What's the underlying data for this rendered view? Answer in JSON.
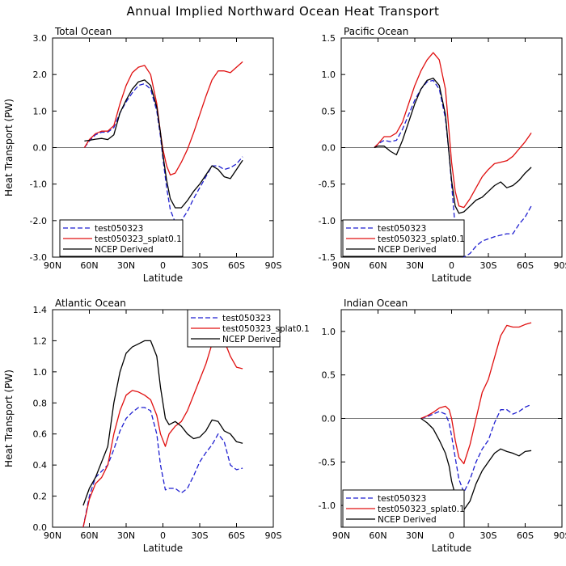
{
  "figure_title": "Annual Implied Northward Ocean Heat Transport",
  "legend_labels": [
    "test050323",
    "test050323_splat0.1",
    "NCEP Derived"
  ],
  "colors": {
    "test050323": "#1f1fd0",
    "test050323_splat0.1": "#e01010",
    "NCEP Derived": "#000000"
  },
  "chart_data": [
    {
      "type": "line",
      "title": "Total Ocean",
      "xlabel": "Latitude",
      "ylabel": "Heat Transport (PW)",
      "x_tick_labels": [
        "90N",
        "60N",
        "30N",
        "0",
        "30S",
        "60S",
        "90S"
      ],
      "xlim": [
        90,
        -90
      ],
      "ylim": [
        -3.0,
        3.0
      ],
      "y_ticks": [
        -3.0,
        -2.0,
        -1.0,
        0.0,
        1.0,
        2.0,
        3.0
      ],
      "y_tick_labels": [
        "-3.0",
        "-2.0",
        "-1.0",
        "0.0",
        "1.0",
        "2.0",
        "3.0"
      ],
      "zero_line": true,
      "legend_position": "bottom-left",
      "series": [
        {
          "name": "test050323",
          "style": "dashed",
          "color": "#1f1fd0",
          "x": [
            64,
            60,
            55,
            50,
            45,
            40,
            35,
            30,
            25,
            20,
            15,
            10,
            5,
            2,
            0,
            -3,
            -6,
            -10,
            -15,
            -20,
            -25,
            -30,
            -35,
            -40,
            -45,
            -50,
            -55,
            -60,
            -65
          ],
          "y": [
            0.0,
            0.18,
            0.35,
            0.42,
            0.42,
            0.55,
            0.95,
            1.25,
            1.5,
            1.7,
            1.75,
            1.6,
            1.0,
            0.3,
            -0.3,
            -1.1,
            -1.7,
            -2.05,
            -2.0,
            -1.75,
            -1.4,
            -1.1,
            -0.8,
            -0.5,
            -0.5,
            -0.6,
            -0.55,
            -0.45,
            -0.25
          ]
        },
        {
          "name": "test050323_splat0.1",
          "style": "solid",
          "color": "#e01010",
          "x": [
            64,
            60,
            55,
            50,
            45,
            40,
            35,
            30,
            25,
            20,
            15,
            10,
            5,
            2,
            0,
            -3,
            -6,
            -10,
            -15,
            -20,
            -25,
            -30,
            -35,
            -40,
            -45,
            -50,
            -55,
            -60,
            -65
          ],
          "y": [
            0.0,
            0.22,
            0.38,
            0.45,
            0.45,
            0.6,
            1.2,
            1.7,
            2.05,
            2.2,
            2.25,
            2.0,
            1.2,
            0.4,
            -0.05,
            -0.5,
            -0.75,
            -0.7,
            -0.4,
            -0.05,
            0.4,
            0.9,
            1.4,
            1.85,
            2.1,
            2.1,
            2.05,
            2.2,
            2.35
          ]
        },
        {
          "name": "NCEP Derived",
          "style": "solid",
          "color": "#000000",
          "x": [
            64,
            60,
            55,
            50,
            45,
            40,
            35,
            30,
            25,
            20,
            15,
            10,
            5,
            2,
            0,
            -3,
            -6,
            -10,
            -15,
            -20,
            -25,
            -30,
            -35,
            -40,
            -45,
            -50,
            -55,
            -60,
            -65
          ],
          "y": [
            0.18,
            0.2,
            0.23,
            0.25,
            0.22,
            0.35,
            0.95,
            1.3,
            1.6,
            1.8,
            1.85,
            1.7,
            1.1,
            0.4,
            -0.2,
            -0.9,
            -1.4,
            -1.65,
            -1.65,
            -1.45,
            -1.2,
            -1.0,
            -0.75,
            -0.5,
            -0.6,
            -0.8,
            -0.85,
            -0.6,
            -0.35
          ]
        }
      ]
    },
    {
      "type": "line",
      "title": "Pacific Ocean",
      "xlabel": "Latitude",
      "ylabel": "",
      "x_tick_labels": [
        "90N",
        "60N",
        "30N",
        "0",
        "30S",
        "60S",
        "90S"
      ],
      "xlim": [
        90,
        -90
      ],
      "ylim": [
        -1.5,
        1.5
      ],
      "y_ticks": [
        -1.5,
        -1.0,
        -0.5,
        0.0,
        0.5,
        1.0,
        1.5
      ],
      "y_tick_labels": [
        "-1.5",
        "-1.0",
        "-0.5",
        "0.0",
        "0.5",
        "1.0",
        "1.5"
      ],
      "zero_line": true,
      "legend_position": "bottom-left",
      "series": [
        {
          "name": "test050323",
          "style": "dashed",
          "color": "#1f1fd0",
          "x": [
            63,
            60,
            55,
            50,
            45,
            40,
            35,
            30,
            25,
            20,
            15,
            10,
            5,
            2,
            0,
            -3,
            -6,
            -10,
            -15,
            -20,
            -25,
            -30,
            -35,
            -40,
            -45,
            -50,
            -55,
            -60,
            -65
          ],
          "y": [
            0.0,
            0.05,
            0.1,
            0.08,
            0.1,
            0.25,
            0.45,
            0.65,
            0.8,
            0.9,
            0.92,
            0.8,
            0.4,
            -0.1,
            -0.5,
            -1.1,
            -1.4,
            -1.5,
            -1.45,
            -1.35,
            -1.28,
            -1.25,
            -1.22,
            -1.2,
            -1.18,
            -1.18,
            -1.05,
            -0.95,
            -0.8
          ]
        },
        {
          "name": "test050323_splat0.1",
          "style": "solid",
          "color": "#e01010",
          "x": [
            63,
            60,
            55,
            50,
            45,
            40,
            35,
            30,
            25,
            20,
            15,
            10,
            5,
            2,
            0,
            -3,
            -6,
            -10,
            -15,
            -20,
            -25,
            -30,
            -35,
            -40,
            -45,
            -50,
            -55,
            -60,
            -65
          ],
          "y": [
            0.0,
            0.05,
            0.15,
            0.15,
            0.2,
            0.35,
            0.6,
            0.85,
            1.05,
            1.2,
            1.3,
            1.2,
            0.8,
            0.2,
            -0.2,
            -0.6,
            -0.8,
            -0.82,
            -0.7,
            -0.55,
            -0.4,
            -0.3,
            -0.22,
            -0.2,
            -0.18,
            -0.12,
            -0.02,
            0.08,
            0.2
          ]
        },
        {
          "name": "NCEP Derived",
          "style": "solid",
          "color": "#000000",
          "x": [
            63,
            60,
            55,
            50,
            45,
            40,
            35,
            30,
            25,
            20,
            15,
            10,
            5,
            2,
            0,
            -3,
            -6,
            -10,
            -15,
            -20,
            -25,
            -30,
            -35,
            -40,
            -45,
            -50,
            -55,
            -60,
            -65
          ],
          "y": [
            0.0,
            0.02,
            0.02,
            -0.05,
            -0.1,
            0.1,
            0.35,
            0.6,
            0.8,
            0.92,
            0.95,
            0.85,
            0.45,
            -0.1,
            -0.45,
            -0.8,
            -0.9,
            -0.88,
            -0.8,
            -0.72,
            -0.68,
            -0.6,
            -0.52,
            -0.47,
            -0.55,
            -0.52,
            -0.45,
            -0.35,
            -0.27
          ]
        }
      ]
    },
    {
      "type": "line",
      "title": "Atlantic Ocean",
      "xlabel": "Latitude",
      "ylabel": "Heat Transport (PW)",
      "x_tick_labels": [
        "90N",
        "60N",
        "30N",
        "0",
        "30S",
        "60S",
        "90S"
      ],
      "xlim": [
        90,
        -90
      ],
      "ylim": [
        0.0,
        1.4
      ],
      "y_ticks": [
        0.0,
        0.2,
        0.4,
        0.6,
        0.8,
        1.0,
        1.2,
        1.4
      ],
      "y_tick_labels": [
        "0.0",
        "0.2",
        "0.4",
        "0.6",
        "0.8",
        "1.0",
        "1.2",
        "1.4"
      ],
      "zero_line": false,
      "legend_position": "top-right",
      "series": [
        {
          "name": "test050323",
          "style": "dashed",
          "color": "#1f1fd0",
          "x": [
            65,
            60,
            55,
            50,
            45,
            40,
            35,
            30,
            25,
            20,
            15,
            10,
            5,
            2,
            -2,
            -5,
            -10,
            -15,
            -20,
            -25,
            -30,
            -35,
            -40,
            -45,
            -50,
            -55,
            -60,
            -65
          ],
          "y": [
            0.0,
            0.2,
            0.32,
            0.36,
            0.4,
            0.5,
            0.62,
            0.7,
            0.74,
            0.77,
            0.77,
            0.75,
            0.6,
            0.4,
            0.24,
            0.25,
            0.25,
            0.22,
            0.25,
            0.33,
            0.42,
            0.48,
            0.53,
            0.6,
            0.55,
            0.4,
            0.37,
            0.38
          ]
        },
        {
          "name": "test050323_splat0.1",
          "style": "solid",
          "color": "#e01010",
          "x": [
            65,
            60,
            55,
            50,
            45,
            40,
            35,
            30,
            25,
            20,
            15,
            10,
            5,
            2,
            -2,
            -5,
            -10,
            -15,
            -20,
            -25,
            -30,
            -35,
            -40,
            -45,
            -50,
            -55,
            -60,
            -65
          ],
          "y": [
            0.0,
            0.18,
            0.28,
            0.32,
            0.4,
            0.6,
            0.75,
            0.85,
            0.88,
            0.87,
            0.85,
            0.82,
            0.72,
            0.6,
            0.52,
            0.6,
            0.65,
            0.68,
            0.75,
            0.85,
            0.95,
            1.05,
            1.18,
            1.25,
            1.2,
            1.1,
            1.03,
            1.02
          ]
        },
        {
          "name": "NCEP Derived",
          "style": "solid",
          "color": "#000000",
          "x": [
            65,
            60,
            55,
            50,
            45,
            40,
            35,
            30,
            25,
            20,
            15,
            10,
            5,
            2,
            -2,
            -5,
            -10,
            -15,
            -20,
            -25,
            -30,
            -35,
            -40,
            -45,
            -50,
            -55,
            -60,
            -65
          ],
          "y": [
            0.14,
            0.25,
            0.32,
            0.42,
            0.52,
            0.8,
            1.0,
            1.12,
            1.16,
            1.18,
            1.2,
            1.2,
            1.1,
            0.9,
            0.7,
            0.66,
            0.68,
            0.65,
            0.6,
            0.57,
            0.58,
            0.62,
            0.69,
            0.68,
            0.62,
            0.6,
            0.55,
            0.54
          ]
        }
      ]
    },
    {
      "type": "line",
      "title": "Indian Ocean",
      "xlabel": "Latitude",
      "ylabel": "",
      "x_tick_labels": [
        "90N",
        "60N",
        "30N",
        "0",
        "30S",
        "60S",
        "90S"
      ],
      "xlim": [
        90,
        -90
      ],
      "ylim": [
        -1.25,
        1.25
      ],
      "y_ticks": [
        -1.0,
        -0.5,
        0.0,
        0.5,
        1.0
      ],
      "y_tick_labels": [
        "-1.0",
        "-0.5",
        "0.0",
        "0.5",
        "1.0"
      ],
      "zero_line": true,
      "legend_position": "bottom-left",
      "series": [
        {
          "name": "test050323",
          "style": "dashed",
          "color": "#1f1fd0",
          "x": [
            25,
            20,
            15,
            10,
            5,
            2,
            0,
            -3,
            -6,
            -10,
            -15,
            -20,
            -25,
            -30,
            -35,
            -40,
            -45,
            -50,
            -55,
            -60,
            -65
          ],
          "y": [
            0.0,
            0.02,
            0.05,
            0.08,
            0.05,
            -0.05,
            -0.2,
            -0.45,
            -0.7,
            -0.85,
            -0.7,
            -0.5,
            -0.35,
            -0.25,
            -0.05,
            0.1,
            0.1,
            0.05,
            0.08,
            0.13,
            0.16
          ]
        },
        {
          "name": "test050323_splat0.1",
          "style": "solid",
          "color": "#e01010",
          "x": [
            25,
            20,
            15,
            10,
            5,
            2,
            0,
            -3,
            -6,
            -10,
            -15,
            -20,
            -25,
            -30,
            -35,
            -40,
            -45,
            -50,
            -55,
            -60,
            -65
          ],
          "y": [
            0.0,
            0.03,
            0.07,
            0.12,
            0.14,
            0.1,
            0.0,
            -0.25,
            -0.45,
            -0.52,
            -0.3,
            0.0,
            0.3,
            0.45,
            0.7,
            0.95,
            1.07,
            1.05,
            1.05,
            1.08,
            1.1
          ]
        },
        {
          "name": "NCEP Derived",
          "style": "solid",
          "color": "#000000",
          "x": [
            25,
            20,
            15,
            10,
            5,
            2,
            0,
            -3,
            -6,
            -10,
            -15,
            -20,
            -25,
            -30,
            -35,
            -40,
            -45,
            -50,
            -55,
            -60,
            -65
          ],
          "y": [
            0.0,
            -0.05,
            -0.12,
            -0.25,
            -0.4,
            -0.55,
            -0.72,
            -0.88,
            -1.0,
            -1.05,
            -0.95,
            -0.75,
            -0.6,
            -0.5,
            -0.4,
            -0.35,
            -0.38,
            -0.4,
            -0.43,
            -0.38,
            -0.37
          ]
        }
      ]
    }
  ]
}
